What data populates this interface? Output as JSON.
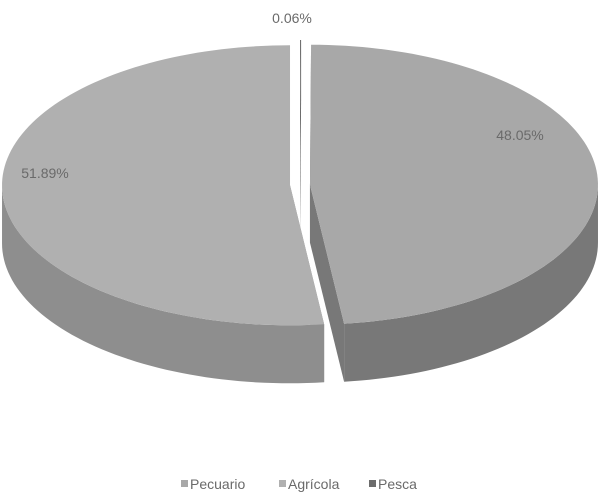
{
  "chart_data": {
    "type": "pie",
    "style": "3d-exploded",
    "slices": [
      {
        "name": "Pecuario",
        "value": 48.05,
        "label": "48.05%",
        "color": "#a8a8a8",
        "side_color": "#787878"
      },
      {
        "name": "Agrícola",
        "value": 51.89,
        "label": "51.89%",
        "color": "#b0b0b0",
        "side_color": "#8e8e8e"
      },
      {
        "name": "Pesca",
        "value": 0.06,
        "label": "0.06%",
        "color": "#6c6c6c",
        "side_color": "#555555"
      }
    ],
    "legend": {
      "placement": "bottom",
      "items": [
        "Pecuario",
        "Agrícola",
        "Pesca"
      ]
    }
  }
}
